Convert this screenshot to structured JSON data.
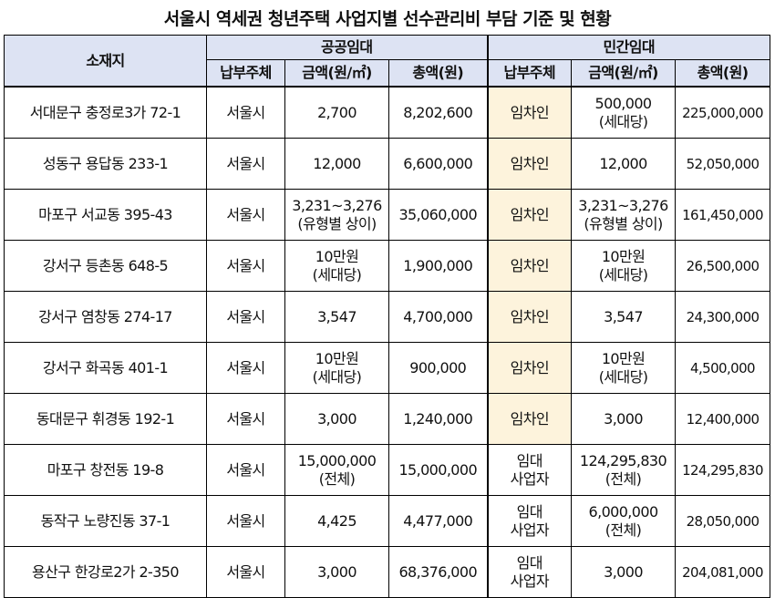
{
  "title": "서울시 역세권 청년주택 사업지별 선수관리비 부담 기준 및 현황",
  "header": {
    "location": "소재지",
    "public_group": "공공임대",
    "private_group": "민간임대",
    "payer": "납부주체",
    "amount_per_m2": "금액(원/㎡)",
    "total": "총액(원)"
  },
  "rows": [
    {
      "location": "서대문구 충정로3가 72-1",
      "pub_payer": "서울시",
      "pub_amount": [
        "2,700"
      ],
      "pub_total": "8,202,600",
      "priv_payer": [
        "임차인"
      ],
      "priv_amount": [
        "500,000",
        "(세대당)"
      ],
      "priv_total": "225,000,000",
      "highlight": true
    },
    {
      "location": "성동구 용답동 233-1",
      "pub_payer": "서울시",
      "pub_amount": [
        "12,000"
      ],
      "pub_total": "6,600,000",
      "priv_payer": [
        "임차인"
      ],
      "priv_amount": [
        "12,000"
      ],
      "priv_total": "52,050,000",
      "highlight": true
    },
    {
      "location": "마포구 서교동 395-43",
      "pub_payer": "서울시",
      "pub_amount": [
        "3,231~3,276",
        "(유형별 상이)"
      ],
      "pub_total": "35,060,000",
      "priv_payer": [
        "임차인"
      ],
      "priv_amount": [
        "3,231~3,276",
        "(유형별 상이)"
      ],
      "priv_total": "161,450,000",
      "highlight": true
    },
    {
      "location": "강서구 등촌동 648-5",
      "pub_payer": "서울시",
      "pub_amount": [
        "10만원",
        "(세대당)"
      ],
      "pub_total": "1,900,000",
      "priv_payer": [
        "임차인"
      ],
      "priv_amount": [
        "10만원",
        "(세대당)"
      ],
      "priv_total": "26,500,000",
      "highlight": true
    },
    {
      "location": "강서구 염창동 274-17",
      "pub_payer": "서울시",
      "pub_amount": [
        "3,547"
      ],
      "pub_total": "4,700,000",
      "priv_payer": [
        "임차인"
      ],
      "priv_amount": [
        "3,547"
      ],
      "priv_total": "24,300,000",
      "highlight": true
    },
    {
      "location": "강서구 화곡동 401-1",
      "pub_payer": "서울시",
      "pub_amount": [
        "10만원",
        "(세대당)"
      ],
      "pub_total": "900,000",
      "priv_payer": [
        "임차인"
      ],
      "priv_amount": [
        "10만원",
        "(세대당)"
      ],
      "priv_total": "4,500,000",
      "highlight": true
    },
    {
      "location": "동대문구 휘경동 192-1",
      "pub_payer": "서울시",
      "pub_amount": [
        "3,000"
      ],
      "pub_total": "1,240,000",
      "priv_payer": [
        "임차인"
      ],
      "priv_amount": [
        "3,000"
      ],
      "priv_total": "12,400,000",
      "highlight": true
    },
    {
      "location": "마포구 창전동 19-8",
      "pub_payer": "서울시",
      "pub_amount": [
        "15,000,000",
        "(전체)"
      ],
      "pub_total": "15,000,000",
      "priv_payer": [
        "임대",
        "사업자"
      ],
      "priv_amount": [
        "124,295,830",
        "(전체)"
      ],
      "priv_total": "124,295,830",
      "highlight": false
    },
    {
      "location": "동작구 노량진동 37-1",
      "pub_payer": "서울시",
      "pub_amount": [
        "4,425"
      ],
      "pub_total": "4,477,000",
      "priv_payer": [
        "임대",
        "사업자"
      ],
      "priv_amount": [
        "6,000,000",
        "(전체)"
      ],
      "priv_total": "28,050,000",
      "highlight": false
    },
    {
      "location": "용산구 한강로2가 2-350",
      "pub_payer": "서울시",
      "pub_amount": [
        "3,000"
      ],
      "pub_total": "68,376,000",
      "priv_payer": [
        "임대",
        "사업자"
      ],
      "priv_amount": [
        "3,000"
      ],
      "priv_total": "204,081,000",
      "highlight": false
    }
  ]
}
